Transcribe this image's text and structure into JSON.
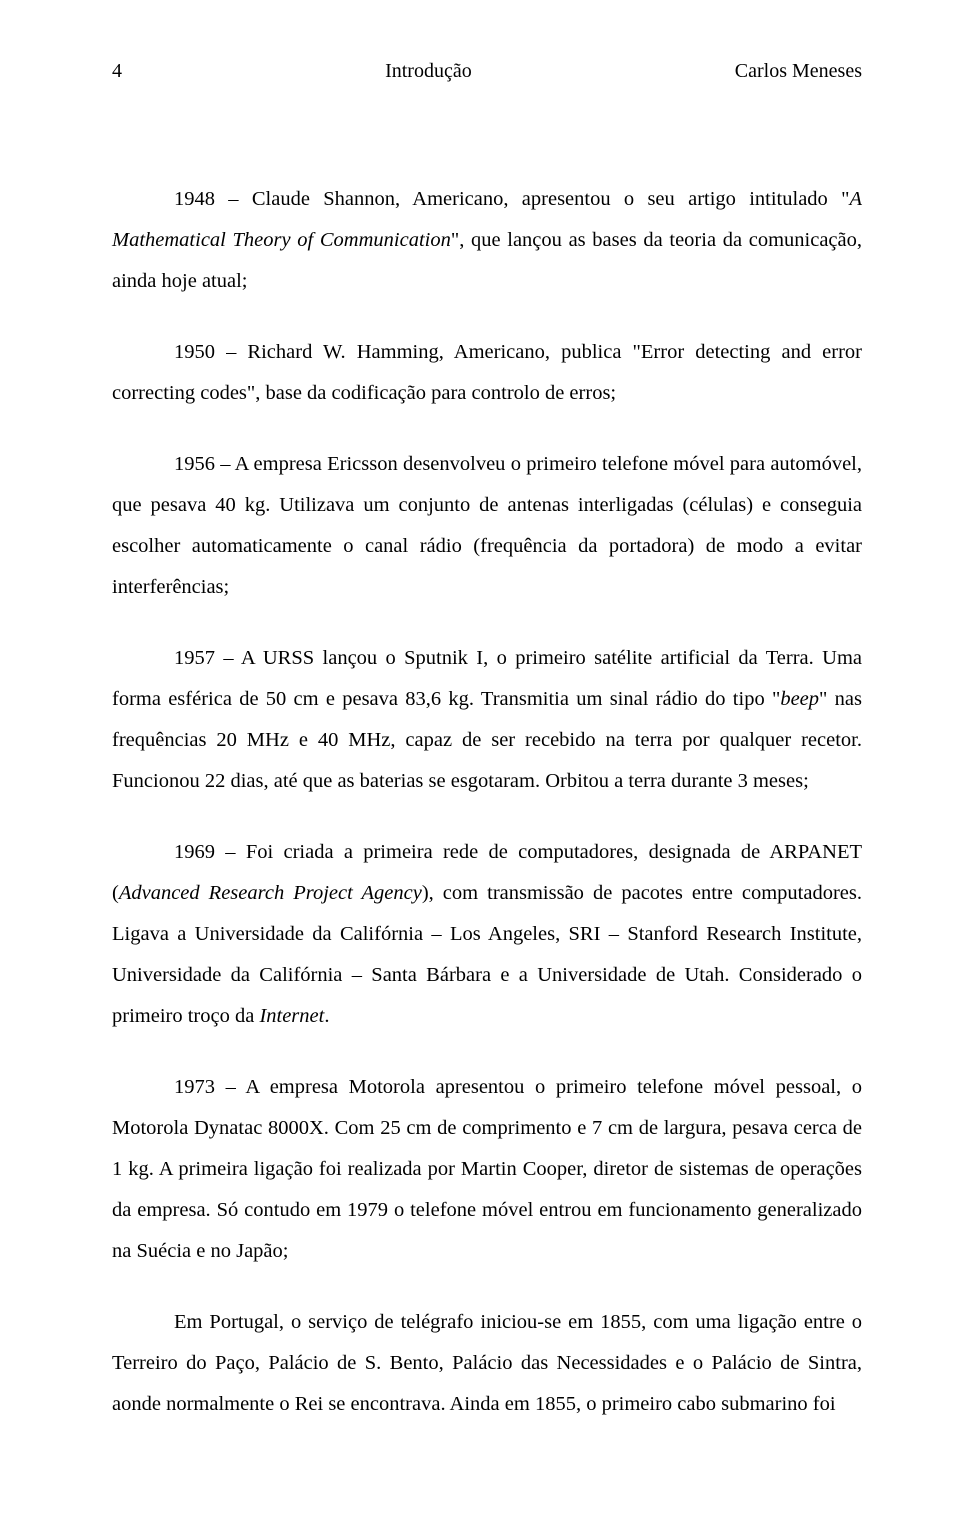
{
  "header": {
    "page_number": "4",
    "section": "Introdução",
    "author": "Carlos Meneses"
  },
  "paragraphs": {
    "p1": {
      "s1a": "1948 – Claude Shannon, Americano, apresentou o seu artigo intitulado \"",
      "s1i": "A Mathematical Theory of Communication",
      "s1b": "\", que lançou as bases da teoria da comunicação, ainda hoje atual;"
    },
    "p2": {
      "s1": "1950 – Richard W. Hamming, Americano, publica \"Error detecting and error correcting codes\", base da codificação para controlo de erros;"
    },
    "p3": {
      "s1": "1956 – A empresa Ericsson desenvolveu o primeiro telefone móvel para automóvel, que pesava 40 kg. Utilizava um conjunto de antenas interligadas (células) e conseguia escolher automaticamente o canal rádio (frequência da portadora) de modo a evitar interferências;"
    },
    "p4": {
      "s1a": "1957 – A URSS lançou o Sputnik I, o primeiro satélite artificial da Terra. Uma forma esférica de 50 cm e pesava 83,6 kg. Transmitia um sinal rádio do tipo \"",
      "s1i": "beep",
      "s1b": "\" nas frequências 20 MHz e 40 MHz, capaz de ser recebido na terra por qualquer recetor. Funcionou 22 dias, até que as baterias se esgotaram. Orbitou a terra durante 3 meses;"
    },
    "p5": {
      "s1a": "1969 – Foi criada a primeira rede de computadores, designada de ARPANET (",
      "s1i": "Advanced Research Project Agency",
      "s1b": "), com transmissão de pacotes entre computadores. Ligava a Universidade da Califórnia – Los Angeles, SRI – Stanford Research Institute, Universidade da Califórnia – Santa Bárbara e a Universidade de Utah. Considerado o primeiro troço da ",
      "s1i2": "Internet",
      "s1c": "."
    },
    "p6": {
      "s1": "1973 – A empresa Motorola apresentou o primeiro telefone móvel pessoal, o Motorola Dynatac 8000X. Com 25 cm de comprimento e 7 cm de largura, pesava cerca de 1 kg. A primeira ligação foi realizada por Martin Cooper, diretor de sistemas de operações da empresa. Só contudo em 1979 o telefone móvel entrou em funcionamento generalizado na Suécia e no Japão;"
    },
    "p7": {
      "s1": "Em Portugal, o serviço de telégrafo iniciou-se em 1855, com uma ligação entre o Terreiro do Paço, Palácio de S. Bento, Palácio das Necessidades e o Palácio de Sintra, aonde normalmente o Rei se encontrava. Ainda em 1855, o primeiro cabo submarino foi"
    }
  }
}
